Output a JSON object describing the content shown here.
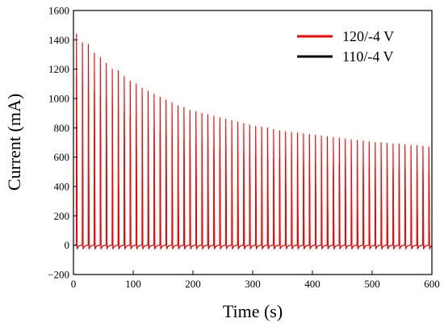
{
  "chart_data": {
    "type": "line",
    "xlabel": "Time (s)",
    "ylabel": "Current (mA)",
    "xlim": [
      0,
      600
    ],
    "ylim": [
      -200,
      1600
    ],
    "x_ticks": [
      "0",
      "100",
      "200",
      "300",
      "400",
      "500",
      "600"
    ],
    "y_ticks": [
      "−200",
      "0",
      "200",
      "400",
      "600",
      "800",
      "1000",
      "1200",
      "1400",
      "1600"
    ],
    "grid": false,
    "legend_position": "top-right",
    "pulse_period_s": 10,
    "baseline_mA": 0,
    "series": [
      {
        "name": "120/-4 V",
        "color": "#ff0000",
        "pulse_start_s": [
          5,
          15,
          25,
          35,
          45,
          55,
          65,
          75,
          85,
          95,
          105,
          115,
          125,
          135,
          145,
          155,
          165,
          175,
          185,
          195,
          205,
          215,
          225,
          235,
          245,
          255,
          265,
          275,
          285,
          295,
          305,
          315,
          325,
          335,
          345,
          355,
          365,
          375,
          385,
          395,
          405,
          415,
          425,
          435,
          445,
          455,
          465,
          475,
          485,
          495,
          505,
          515,
          525,
          535,
          545,
          555,
          565,
          575,
          585,
          595
        ],
        "peak_mA": [
          1440,
          1380,
          1370,
          1310,
          1280,
          1240,
          1200,
          1190,
          1150,
          1120,
          1100,
          1070,
          1050,
          1030,
          1010,
          990,
          970,
          950,
          940,
          920,
          910,
          900,
          890,
          880,
          870,
          860,
          850,
          840,
          830,
          820,
          810,
          805,
          800,
          790,
          780,
          775,
          770,
          765,
          760,
          755,
          750,
          745,
          740,
          735,
          730,
          725,
          720,
          715,
          710,
          705,
          700,
          700,
          695,
          690,
          690,
          685,
          680,
          680,
          675,
          670
        ]
      },
      {
        "name": "110/-4 V",
        "color": "#000000",
        "pulse_start_s": [
          5,
          15,
          25,
          35,
          45,
          55,
          65,
          75,
          85,
          95,
          105,
          115,
          125,
          135,
          145,
          155,
          165,
          175,
          185,
          195,
          205,
          215,
          225,
          235,
          245,
          255,
          265,
          275,
          285,
          295,
          305,
          315,
          325,
          335,
          345,
          355,
          365,
          375,
          385,
          395,
          405,
          415,
          425,
          435,
          445,
          455,
          465,
          475,
          485,
          495,
          505,
          515,
          525,
          535,
          545,
          555,
          565,
          575,
          585,
          595
        ],
        "peak_mA": [
          1150,
          1100,
          1080,
          1050,
          1020,
          990,
          960,
          940,
          910,
          880,
          860,
          840,
          820,
          800,
          780,
          760,
          745,
          730,
          715,
          700,
          690,
          680,
          670,
          660,
          650,
          640,
          630,
          625,
          620,
          610,
          605,
          600,
          595,
          590,
          585,
          580,
          575,
          570,
          565,
          560,
          560,
          555,
          550,
          545,
          545,
          540,
          540,
          535,
          530,
          530,
          525,
          525,
          520,
          520,
          515,
          515,
          510,
          510,
          505,
          505
        ]
      }
    ]
  }
}
